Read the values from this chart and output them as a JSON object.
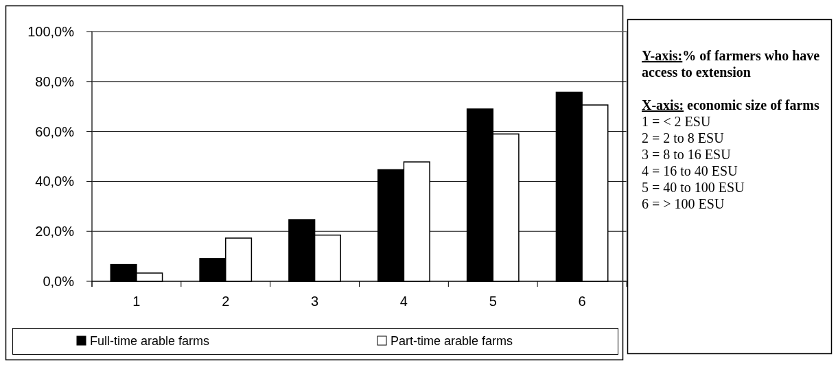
{
  "chart_data": {
    "type": "bar",
    "categories": [
      "1",
      "2",
      "3",
      "4",
      "5",
      "6"
    ],
    "series": [
      {
        "name": "Full-time arable farms",
        "color": "#000000",
        "values": [
          6.7,
          9.1,
          24.7,
          44.7,
          69.0,
          75.7
        ]
      },
      {
        "name": "Part-time arable farms",
        "color": "#ffffff",
        "values": [
          3.3,
          17.3,
          18.5,
          47.8,
          59.0,
          70.6
        ]
      }
    ],
    "ylim": [
      0,
      100
    ],
    "yticks": [
      {
        "value": 0,
        "label": "0,0%"
      },
      {
        "value": 20,
        "label": "20,0%"
      },
      {
        "value": 40,
        "label": "40,0%"
      },
      {
        "value": 60,
        "label": "60,0%"
      },
      {
        "value": 80,
        "label": "80,0%"
      },
      {
        "value": 100,
        "label": "100,0%"
      }
    ],
    "grid": "y",
    "legend": "bottom",
    "ylabel": "Y-axis:% of farmers who have access to extension",
    "xlabel": "X-axis: economic size of farms",
    "annotations": [
      "1 = < 2 ESU",
      "2 = 2 to 8 ESU",
      "3 = 8 to 16 ESU",
      "4 = 16 to 40 ESU",
      "5 = 40 to 100 ESU",
      "6 = > 100 ESU"
    ]
  }
}
